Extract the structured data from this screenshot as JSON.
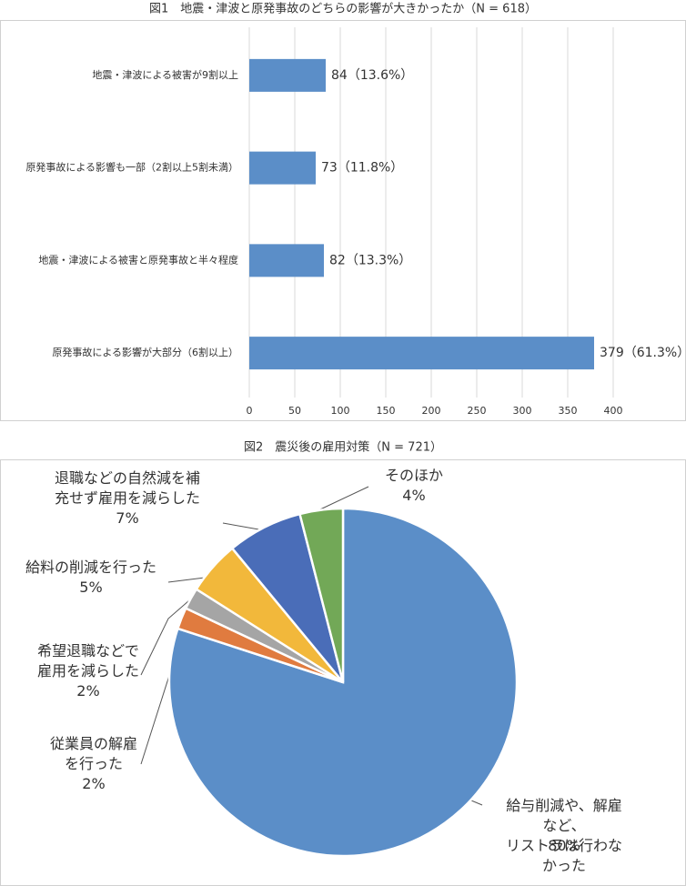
{
  "chart_data": [
    {
      "type": "barh",
      "title": "図1　地震・津波と原発事故のどちらの影響が大きかったか（N = 618）",
      "categories": [
        "地震・津波による被害が9割以上",
        "原発事故による影響も一部（2割以上5割未満）",
        "地震・津波による被害と原発事故と半々程度",
        "原発事故による影響が大部分（6割以上）"
      ],
      "values": [
        84,
        73,
        82,
        379
      ],
      "value_labels": [
        "84（13.6%）",
        "73（11.8%）",
        "82（13.3%）",
        "379（61.3%）"
      ],
      "color": "#5b8ec8",
      "xlim": [
        0,
        400
      ],
      "xticks": [
        0,
        50,
        100,
        150,
        200,
        250,
        300,
        350,
        400
      ],
      "grid": true
    },
    {
      "type": "pie",
      "title": "図2　震災後の雇用対策（N = 721）",
      "categories": [
        "給与削減や、解雇など、\nリストラは行わなかった",
        "従業員の解雇\nを行った",
        "希望退職などで\n雇用を減らした",
        "給料の削減を行った",
        "退職などの自然減を補\n充せず雇用を減らした",
        "そのほか"
      ],
      "values": [
        80,
        2,
        2,
        5,
        7,
        4
      ],
      "value_labels": [
        "80%",
        "2%",
        "2%",
        "5%",
        "7%",
        "4%"
      ],
      "colors": [
        "#5b8ec8",
        "#e07b3f",
        "#a5a5a5",
        "#f2b83b",
        "#4a6db8",
        "#72a857"
      ]
    }
  ]
}
